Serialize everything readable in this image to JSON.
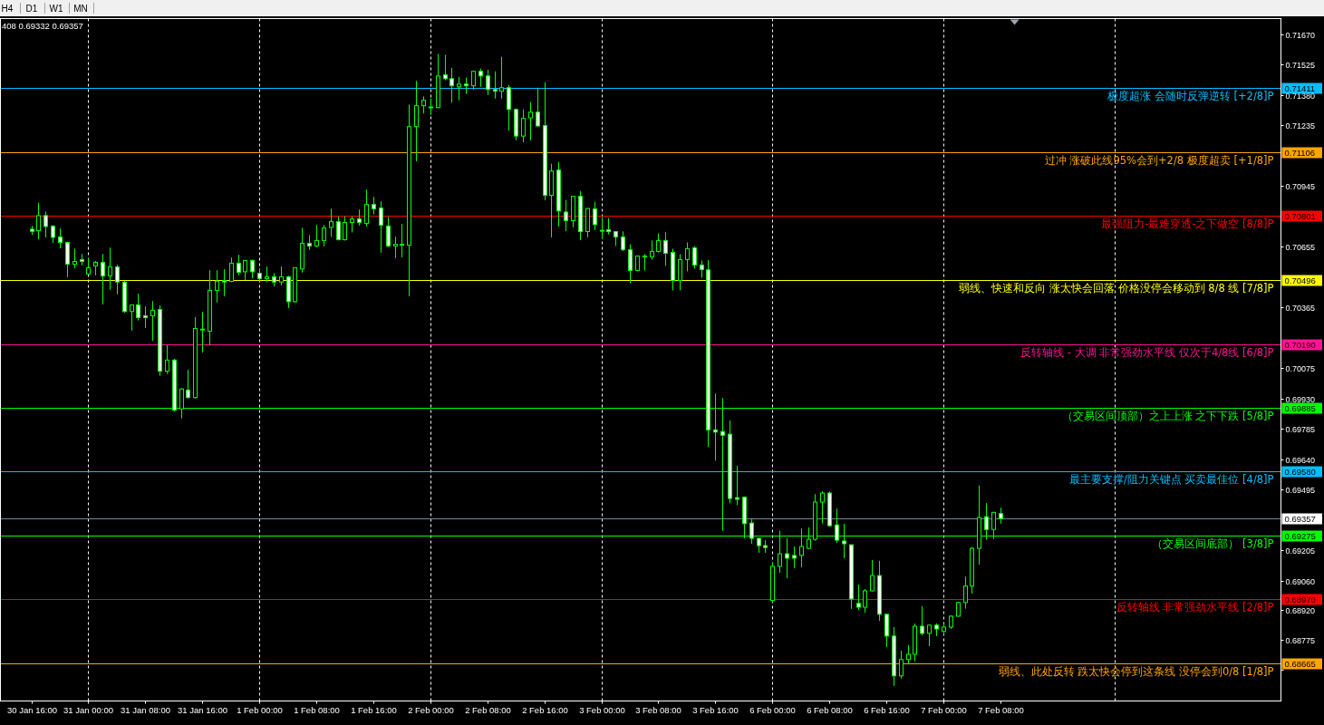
{
  "chart_data": {
    "type": "candlestick",
    "subtitle": "408 0.69332 0.69357",
    "annotations": [
      "H4",
      "D1",
      "W1",
      "MN"
    ],
    "color": "#00ff00",
    "grid": "x",
    "ylim": [
      0.68485,
      0.71744
    ],
    "yticks": [
      {
        "value": 0.7167,
        "label": "0.71670"
      },
      {
        "value": 0.71525,
        "label": "0.71525"
      },
      {
        "value": 0.71411,
        "label": "0.71411"
      },
      {
        "value": 0.7138,
        "label": "0.71380"
      },
      {
        "value": 0.71235,
        "label": "0.71235"
      },
      {
        "value": 0.71106,
        "label": "0.71106"
      },
      {
        "value": 0.70945,
        "label": "0.70945"
      },
      {
        "value": 0.70801,
        "label": "0.70801"
      },
      {
        "value": 0.70655,
        "label": "0.70655"
      },
      {
        "value": 0.70496,
        "label": "0.70496"
      },
      {
        "value": 0.70365,
        "label": "0.70365"
      },
      {
        "value": 0.7019,
        "label": "0.70190"
      },
      {
        "value": 0.70075,
        "label": "0.70075"
      },
      {
        "value": 0.6993,
        "label": "0.69930"
      },
      {
        "value": 0.69885,
        "label": "0.69885"
      },
      {
        "value": 0.69785,
        "label": "0.69785"
      },
      {
        "value": 0.6964,
        "label": "0.69640"
      },
      {
        "value": 0.6958,
        "label": "0.69580"
      },
      {
        "value": 0.69495,
        "label": "0.69495"
      },
      {
        "value": 0.69357,
        "label": "0.69357"
      },
      {
        "value": 0.69275,
        "label": "0.69275"
      },
      {
        "value": 0.69205,
        "label": "0.69205"
      },
      {
        "value": 0.6906,
        "label": "0.69060"
      },
      {
        "value": 0.6897,
        "label": "0.68970"
      },
      {
        "value": 0.6892,
        "label": "0.68920"
      },
      {
        "value": 0.68775,
        "label": "0.68775"
      },
      {
        "value": 0.68665,
        "label": "0.68665"
      },
      {
        "value": 0.68635,
        "label": null
      }
    ],
    "ref_lines": [
      {
        "axis": "y",
        "value": 0.71411,
        "label": "极度超涨 会随时反弹逆转  [+2/8]P",
        "color": "#00bfff"
      },
      {
        "axis": "y",
        "value": 0.71106,
        "label": "过冲 涨破此线95%会到+2/8 极度超卖  [+1/8]P",
        "color": "#ffa500"
      },
      {
        "axis": "y",
        "value": 0.70801,
        "label": "最强阻力-最难穿透-之下做空  [8/8]P",
        "color": "#ff0000"
      },
      {
        "axis": "y",
        "value": 0.70496,
        "label": "弱线、快速和反向 涨太快会回落 价格没停会移动到 8/8 线 [7/8]P",
        "color": "#ffff00"
      },
      {
        "axis": "y",
        "value": 0.7019,
        "label": "反转轴线 - 大调 非常强劲水平线 仅次于4/8线  [6/8]P",
        "color": "#ff1493"
      },
      {
        "axis": "y",
        "value": 0.69885,
        "label": "（交易区间顶部）之上上涨 之下下跌  [5/8]P",
        "color": "#00ff00"
      },
      {
        "axis": "y",
        "value": 0.6958,
        "label": "最主要支撑/阻力关键点 买卖最佳位  [4/8]P",
        "color": "#00bfff"
      },
      {
        "axis": "y",
        "value": 0.69357,
        "color": "#778899"
      },
      {
        "axis": "y",
        "value": 0.69275,
        "label": "（交易区间底部）  [3/8]P",
        "color": "#00ff00"
      },
      {
        "axis": "y",
        "value": 0.6897,
        "label": "反转轴线 非常强劲水平线  [2/8]P",
        "color": "#ff0000"
      },
      {
        "axis": "y",
        "value": 0.68665,
        "label": "弱线、此处反转 跌太快会停到这条线 没停会到0/8  [1/8]P",
        "color": "#ffa500"
      }
    ],
    "categories": [
      "30 Jan 16:00",
      null,
      null,
      null,
      null,
      null,
      null,
      null,
      "31 Jan 00:00",
      null,
      null,
      null,
      null,
      null,
      null,
      null,
      "31 Jan 08:00",
      null,
      null,
      null,
      null,
      null,
      null,
      null,
      "31 Jan 16:00",
      null,
      null,
      null,
      null,
      null,
      null,
      null,
      "1 Feb 00:00",
      null,
      null,
      null,
      null,
      null,
      null,
      null,
      "1 Feb 08:00",
      null,
      null,
      null,
      null,
      null,
      null,
      null,
      "1 Feb 16:00",
      null,
      null,
      null,
      null,
      null,
      null,
      null,
      "2 Feb 00:00",
      null,
      null,
      null,
      null,
      null,
      null,
      null,
      "2 Feb 08:00",
      null,
      null,
      null,
      null,
      null,
      null,
      null,
      "2 Feb 16:00",
      null,
      null,
      null,
      null,
      null,
      null,
      null,
      "3 Feb 00:00",
      null,
      null,
      null,
      null,
      null,
      null,
      null,
      "3 Feb 08:00",
      null,
      null,
      null,
      null,
      null,
      null,
      null,
      "3 Feb 16:00",
      null,
      null,
      null,
      null,
      null,
      null,
      null,
      "6 Feb 00:00",
      null,
      null,
      null,
      null,
      null,
      null,
      null,
      "6 Feb 08:00",
      null,
      null,
      null,
      null,
      null,
      null,
      null,
      "6 Feb 16:00",
      null,
      null,
      null,
      null,
      null,
      null,
      null,
      "7 Feb 00:00",
      null,
      null,
      null,
      null,
      null,
      null,
      null,
      "7 Feb 08:00",
      null,
      null,
      null,
      null,
      null,
      null,
      null,
      null,
      null,
      null,
      null,
      null,
      null,
      null,
      null,
      null,
      null,
      null,
      null,
      null,
      null,
      null,
      null,
      null,
      null,
      null,
      null,
      null,
      null,
      null,
      null,
      null,
      null,
      null,
      null,
      null,
      null,
      null,
      null
    ],
    "ohlc": [
      [
        0.70738,
        0.70754,
        0.70711,
        0.70728
      ],
      [
        0.70731,
        0.70865,
        0.7069,
        0.70803
      ],
      [
        0.70803,
        0.70822,
        0.70699,
        0.70751
      ],
      [
        0.70753,
        0.70757,
        0.70673,
        0.70699
      ],
      [
        0.70701,
        0.70741,
        0.70647,
        0.70675
      ],
      [
        0.70675,
        0.70679,
        0.70509,
        0.70571
      ],
      [
        0.70571,
        0.70645,
        0.70551,
        0.70584
      ],
      [
        0.70593,
        0.7062,
        0.70565,
        0.70584
      ],
      [
        0.70524,
        0.70602,
        0.7052,
        0.70554
      ],
      [
        0.70563,
        0.70586,
        0.70518,
        0.7058
      ],
      [
        0.7058,
        0.7062,
        0.70379,
        0.70515
      ],
      [
        0.70515,
        0.7065,
        0.70449,
        0.70558
      ],
      [
        0.70558,
        0.70568,
        0.70427,
        0.70486
      ],
      [
        0.70485,
        0.70492,
        0.70339,
        0.70345
      ],
      [
        0.70345,
        0.70378,
        0.70254,
        0.70377
      ],
      [
        0.70377,
        0.7043,
        0.70302,
        0.70316
      ],
      [
        0.70325,
        0.70369,
        0.70266,
        0.70316
      ],
      [
        0.70325,
        0.70395,
        0.70205,
        0.70351
      ],
      [
        0.70355,
        0.70374,
        0.70038,
        0.7006
      ],
      [
        0.7006,
        0.70184,
        0.70047,
        0.70113
      ],
      [
        0.70113,
        0.70119,
        0.69868,
        0.69874
      ],
      [
        0.6988,
        0.69979,
        0.69835,
        0.69975
      ],
      [
        0.6997,
        0.70067,
        0.69929,
        0.69934
      ],
      [
        0.69934,
        0.70318,
        0.69929,
        0.70264
      ],
      [
        0.70259,
        0.70343,
        0.70149,
        0.70261
      ],
      [
        0.70251,
        0.70542,
        0.70185,
        0.70446
      ],
      [
        0.70446,
        0.70542,
        0.70388,
        0.7049
      ],
      [
        0.70493,
        0.70547,
        0.70418,
        0.70486
      ],
      [
        0.70489,
        0.70603,
        0.70485,
        0.70576
      ],
      [
        0.70576,
        0.70616,
        0.70518,
        0.70532
      ],
      [
        0.70535,
        0.70592,
        0.70495,
        0.70589
      ],
      [
        0.70589,
        0.70593,
        0.70503,
        0.70535
      ],
      [
        0.70528,
        0.7055,
        0.70489,
        0.70502
      ],
      [
        0.70502,
        0.7056,
        0.70485,
        0.70511
      ],
      [
        0.70511,
        0.70528,
        0.70464,
        0.70486
      ],
      [
        0.70486,
        0.7056,
        0.7047,
        0.70511
      ],
      [
        0.70511,
        0.70516,
        0.70362,
        0.70392
      ],
      [
        0.70392,
        0.70556,
        0.70388,
        0.70554
      ],
      [
        0.70548,
        0.70745,
        0.70531,
        0.70671
      ],
      [
        0.70671,
        0.7071,
        0.70639,
        0.70658
      ],
      [
        0.70658,
        0.70758,
        0.70653,
        0.70684
      ],
      [
        0.70684,
        0.70758,
        0.70656,
        0.70744
      ],
      [
        0.70747,
        0.70836,
        0.70702,
        0.70774
      ],
      [
        0.70774,
        0.70799,
        0.70684,
        0.70688
      ],
      [
        0.70688,
        0.70799,
        0.70684,
        0.7077
      ],
      [
        0.7077,
        0.70799,
        0.70723,
        0.70787
      ],
      [
        0.70787,
        0.70832,
        0.70755,
        0.7077
      ],
      [
        0.70766,
        0.70927,
        0.70751,
        0.70856
      ],
      [
        0.70856,
        0.70892,
        0.70809,
        0.70835
      ],
      [
        0.70839,
        0.70871,
        0.70626,
        0.70757
      ],
      [
        0.70753,
        0.70796,
        0.70653,
        0.70658
      ],
      [
        0.70658,
        0.70702,
        0.706,
        0.70666
      ],
      [
        0.70666,
        0.70763,
        0.70604,
        0.70662
      ],
      [
        0.70662,
        0.71333,
        0.70418,
        0.71228
      ],
      [
        0.71228,
        0.71446,
        0.71062,
        0.71328
      ],
      [
        0.71328,
        0.71372,
        0.71291,
        0.71354
      ],
      [
        0.71322,
        0.71362,
        0.71284,
        0.7132
      ],
      [
        0.71319,
        0.71575,
        0.71316,
        0.7147
      ],
      [
        0.71475,
        0.71571,
        0.71449,
        0.71457
      ],
      [
        0.71457,
        0.71509,
        0.71343,
        0.71423
      ],
      [
        0.71418,
        0.71466,
        0.71354,
        0.71431
      ],
      [
        0.71431,
        0.71462,
        0.71384,
        0.71423
      ],
      [
        0.71423,
        0.71496,
        0.71405,
        0.71492
      ],
      [
        0.71492,
        0.71505,
        0.71418,
        0.7147
      ],
      [
        0.7147,
        0.715,
        0.71379,
        0.71405
      ],
      [
        0.71405,
        0.71492,
        0.71362,
        0.71397
      ],
      [
        0.71397,
        0.71561,
        0.71362,
        0.71414
      ],
      [
        0.71414,
        0.71427,
        0.71209,
        0.7131
      ],
      [
        0.7131,
        0.71315,
        0.71163,
        0.71183
      ],
      [
        0.71183,
        0.7131,
        0.71153,
        0.71267
      ],
      [
        0.7127,
        0.71345,
        0.71162,
        0.71297
      ],
      [
        0.71297,
        0.71414,
        0.71229,
        0.71231
      ],
      [
        0.71233,
        0.7144,
        0.70876,
        0.709
      ],
      [
        0.709,
        0.71051,
        0.70699,
        0.71016
      ],
      [
        0.71021,
        0.7106,
        0.70751,
        0.70825
      ],
      [
        0.7082,
        0.70878,
        0.70729,
        0.70779
      ],
      [
        0.70779,
        0.70897,
        0.70747,
        0.70895
      ],
      [
        0.70895,
        0.70921,
        0.70686,
        0.70727
      ],
      [
        0.70727,
        0.70839,
        0.70699,
        0.70837
      ],
      [
        0.70835,
        0.70869,
        0.70734,
        0.7076
      ],
      [
        0.70733,
        0.70796,
        0.70692,
        0.70731
      ],
      [
        0.70736,
        0.70792,
        0.70714,
        0.70727
      ],
      [
        0.70727,
        0.70728,
        0.70658,
        0.70701
      ],
      [
        0.70701,
        0.70727,
        0.70634,
        0.7064
      ],
      [
        0.7064,
        0.70666,
        0.7048,
        0.70541
      ],
      [
        0.70541,
        0.70612,
        0.70537,
        0.7061
      ],
      [
        0.7061,
        0.70619,
        0.70541,
        0.70609
      ],
      [
        0.70606,
        0.70684,
        0.70593,
        0.70632
      ],
      [
        0.70632,
        0.70718,
        0.70627,
        0.70684
      ],
      [
        0.70684,
        0.70723,
        0.70563,
        0.70623
      ],
      [
        0.70627,
        0.70645,
        0.70446,
        0.70493
      ],
      [
        0.70493,
        0.70619,
        0.70446,
        0.70593
      ],
      [
        0.70593,
        0.70675,
        0.70537,
        0.70645
      ],
      [
        0.70649,
        0.70658,
        0.7055,
        0.70567
      ],
      [
        0.70567,
        0.70589,
        0.70506,
        0.70545
      ],
      [
        0.70544,
        0.7059,
        0.69698,
        0.6978
      ],
      [
        0.6978,
        0.69953,
        0.69633,
        0.69769
      ],
      [
        0.69772,
        0.69932,
        0.69298,
        0.69754
      ],
      [
        0.69759,
        0.69824,
        0.69429,
        0.69452
      ],
      [
        0.69456,
        0.69609,
        0.6942,
        0.69448
      ],
      [
        0.69458,
        0.69462,
        0.69262,
        0.69332
      ],
      [
        0.69335,
        0.69357,
        0.69236,
        0.69262
      ],
      [
        0.69262,
        0.69263,
        0.69193,
        0.69227
      ],
      [
        0.69227,
        0.69253,
        0.69193,
        0.69218
      ],
      [
        0.68965,
        0.69146,
        0.68956,
        0.69128
      ],
      [
        0.69128,
        0.69298,
        0.69097,
        0.69188
      ],
      [
        0.69188,
        0.69262,
        0.69071,
        0.69167
      ],
      [
        0.6918,
        0.69223,
        0.69119,
        0.69167
      ],
      [
        0.6918,
        0.69309,
        0.69124,
        0.69223
      ],
      [
        0.69214,
        0.69314,
        0.6921,
        0.69257
      ],
      [
        0.69257,
        0.69473,
        0.6925,
        0.69435
      ],
      [
        0.69435,
        0.69486,
        0.69333,
        0.69478
      ],
      [
        0.69478,
        0.69486,
        0.69318,
        0.69322
      ],
      [
        0.69326,
        0.69404,
        0.6924,
        0.69253
      ],
      [
        0.69249,
        0.69331,
        0.69167,
        0.69236
      ],
      [
        0.69231,
        0.69233,
        0.68925,
        0.68972
      ],
      [
        0.68951,
        0.69041,
        0.6892,
        0.68933
      ],
      [
        0.68933,
        0.6902,
        0.68907,
        0.69011
      ],
      [
        0.69011,
        0.69158,
        0.69008,
        0.69084
      ],
      [
        0.69084,
        0.69154,
        0.68868,
        0.68899
      ],
      [
        0.68899,
        0.689,
        0.68743,
        0.68795
      ],
      [
        0.68795,
        0.68838,
        0.68557,
        0.68605
      ],
      [
        0.68605,
        0.68726,
        0.68592,
        0.68683
      ],
      [
        0.68683,
        0.68752,
        0.68661,
        0.68708
      ],
      [
        0.68708,
        0.68855,
        0.68674,
        0.68842
      ],
      [
        0.68842,
        0.68938,
        0.68799,
        0.68808
      ],
      [
        0.68808,
        0.68849,
        0.68747,
        0.68847
      ],
      [
        0.68847,
        0.68855,
        0.68795,
        0.68829
      ],
      [
        0.68817,
        0.68855,
        0.68803,
        0.68838
      ],
      [
        0.68838,
        0.68894,
        0.68829,
        0.6889
      ],
      [
        0.6889,
        0.68959,
        0.68887,
        0.68955
      ],
      [
        0.68955,
        0.69079,
        0.68926,
        0.69034
      ],
      [
        0.69034,
        0.6922,
        0.68998,
        0.69214
      ],
      [
        0.69214,
        0.69514,
        0.69136,
        0.69361
      ],
      [
        0.69365,
        0.6943,
        0.69255,
        0.69304
      ],
      [
        0.69304,
        0.69388,
        0.69259,
        0.69386
      ],
      [
        0.6938,
        0.69408,
        0.69332,
        0.69357
      ],
      null,
      null,
      null,
      null,
      null,
      null,
      null,
      null,
      null,
      null,
      null,
      null,
      null,
      null,
      null,
      null,
      null,
      null,
      null,
      null,
      null,
      null,
      null,
      null,
      null,
      null,
      null,
      null,
      null,
      null,
      null,
      null,
      null,
      null,
      null,
      null,
      null,
      null,
      null
    ]
  }
}
